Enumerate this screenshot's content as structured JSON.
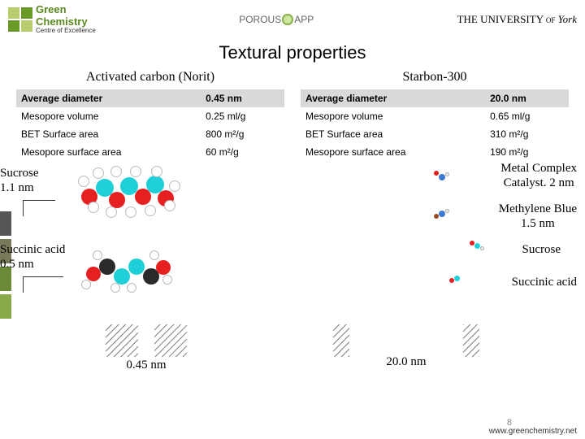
{
  "header": {
    "logo_left_line1": "Green",
    "logo_left_line2": "Chemistry",
    "logo_left_sub": "Centre of Excellence",
    "logo_mid_prefix": "POROUS",
    "logo_mid_suffix": "APP",
    "logo_right_prefix": "THE UNIVERSITY of",
    "logo_right_name": "York"
  },
  "title": "Textural properties",
  "left": {
    "heading": "Activated carbon (Norit)",
    "rows": [
      {
        "label": "Average diameter",
        "value": "0.45 nm",
        "header": true
      },
      {
        "label": "Mesopore volume",
        "value": "0.25 ml/g",
        "header": false
      },
      {
        "label": "BET Surface area",
        "value": "800 m²/g",
        "header": false
      },
      {
        "label": "Mesopore surface area",
        "value": "60 m²/g",
        "header": false
      }
    ]
  },
  "right": {
    "heading": "Starbon-300",
    "rows": [
      {
        "label": "Average diameter",
        "value": "20.0 nm",
        "header": true
      },
      {
        "label": "Mesopore volume",
        "value": "0.65 ml/g",
        "header": false
      },
      {
        "label": "BET Surface area",
        "value": "310 m²/g",
        "header": false
      },
      {
        "label": "Mesopore surface area",
        "value": "190 m²/g",
        "header": false
      }
    ]
  },
  "labels": {
    "sucrose_l": "Sucrose\n1.1 nm",
    "succinic_l": "Succinic acid\n0.5 nm",
    "metal": "Metal Complex\nCatalyst. 2 nm",
    "meth": "Methylene Blue\n1.5 nm",
    "sucrose_r": "Sucrose",
    "succinic_r": "Succinic acid"
  },
  "pores": {
    "left": "0.45 nm",
    "right": "20.0 nm"
  },
  "colors": {
    "atom_red": "#e62020",
    "atom_cyan": "#1fd0d8",
    "atom_white": "#ffffff",
    "atom_dark": "#2a2a2a",
    "pore_hatch": "#7a7a7a",
    "table_head": "#d9d9d9"
  },
  "footer": {
    "url": "www.greenchemistry.net",
    "page": "8"
  }
}
